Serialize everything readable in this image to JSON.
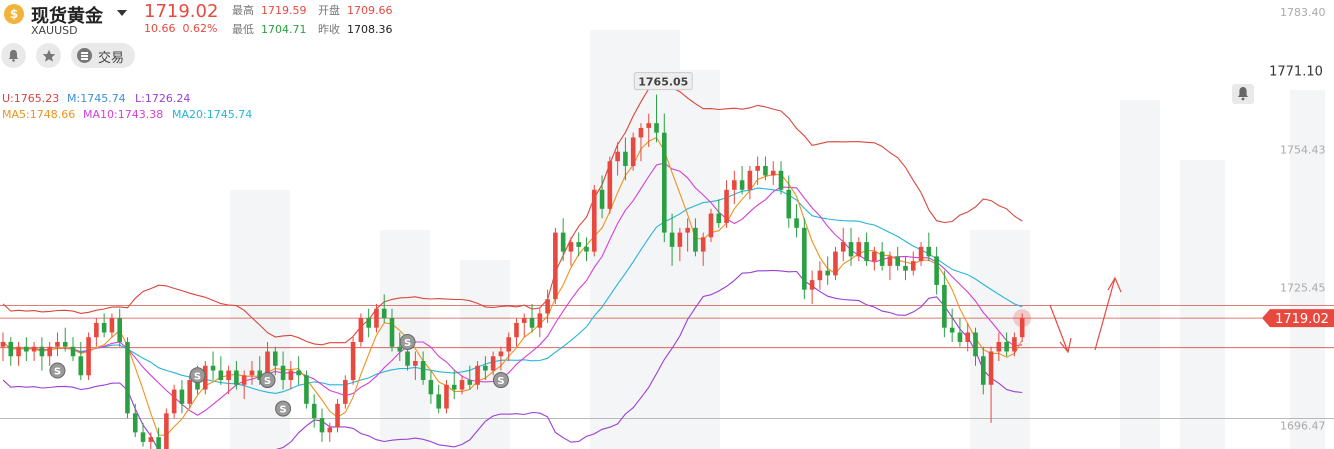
{
  "header": {
    "coin_glyph": "$",
    "name": "现货黄金",
    "symbol": "XAUUSD",
    "price": "1719.02",
    "change": "10.66",
    "change_pct": "0.62%",
    "high_label": "最高",
    "high": "1719.59",
    "open_label": "开盘",
    "open": "1709.66",
    "low_label": "最低",
    "low": "1704.71",
    "prev_label": "昨收",
    "prev_close": "1708.36",
    "trade_label": "交易"
  },
  "indicators": {
    "boll_upper": "U:1765.23",
    "boll_mid": "M:1745.74",
    "boll_lower": "L:1726.24",
    "ma5": "MA5:1748.66",
    "ma10": "MA10:1743.38",
    "ma20": "MA20:1745.74"
  },
  "colors": {
    "up": "#e8493f",
    "down": "#2aa043",
    "upper": "#d9473b",
    "mid": "#26b5d9",
    "lower": "#9b3fd6",
    "ma5": "#f0921f",
    "ma10": "#d53fd8"
  },
  "chart_data": {
    "type": "candlestick",
    "ylim": [
      1691.5,
      1785.9
    ],
    "y_ticks": [
      "1783.40",
      "1754.43",
      "1725.45",
      "1696.47"
    ],
    "current_price_tag": "1719.02",
    "alert_price_tag": "1771.10",
    "peak_label": "1765.05",
    "horizontal_lines": [
      1721.7,
      1719.02,
      1712.8,
      1697.9
    ],
    "candles": [
      [
        1713,
        1716,
        1710,
        1714
      ],
      [
        1714,
        1715,
        1709,
        1711
      ],
      [
        1711,
        1714,
        1709,
        1713
      ],
      [
        1713,
        1715,
        1710,
        1712
      ],
      [
        1712,
        1714,
        1710,
        1713
      ],
      [
        1713,
        1715,
        1708,
        1711
      ],
      [
        1711,
        1714,
        1709,
        1713
      ],
      [
        1713,
        1716,
        1711,
        1714
      ],
      [
        1714,
        1717,
        1712,
        1713
      ],
      [
        1713,
        1715,
        1710,
        1711
      ],
      [
        1711,
        1714,
        1706,
        1707
      ],
      [
        1707,
        1716,
        1706,
        1715
      ],
      [
        1715,
        1719,
        1713,
        1718
      ],
      [
        1718,
        1720,
        1715,
        1716
      ],
      [
        1716,
        1720,
        1715,
        1719
      ],
      [
        1719,
        1721,
        1713,
        1714
      ],
      [
        1714,
        1715,
        1698,
        1699
      ],
      [
        1699,
        1701,
        1694,
        1695
      ],
      [
        1695,
        1697,
        1692,
        1693
      ],
      [
        1693,
        1695,
        1690,
        1694
      ],
      [
        1694,
        1696,
        1690,
        1691
      ],
      [
        1691,
        1700,
        1690,
        1699
      ],
      [
        1699,
        1705,
        1698,
        1704
      ],
      [
        1704,
        1706,
        1699,
        1701
      ],
      [
        1701,
        1707,
        1700,
        1706
      ],
      [
        1706,
        1709,
        1703,
        1704
      ],
      [
        1704,
        1710,
        1703,
        1709
      ],
      [
        1709,
        1712,
        1706,
        1708
      ],
      [
        1708,
        1711,
        1705,
        1706
      ],
      [
        1706,
        1709,
        1703,
        1708
      ],
      [
        1708,
        1710,
        1704,
        1705
      ],
      [
        1705,
        1708,
        1702,
        1707
      ],
      [
        1707,
        1710,
        1705,
        1708
      ],
      [
        1708,
        1711,
        1705,
        1706
      ],
      [
        1706,
        1714,
        1705,
        1712
      ],
      [
        1712,
        1713,
        1707,
        1709
      ],
      [
        1709,
        1712,
        1704,
        1706
      ],
      [
        1706,
        1710,
        1704,
        1708
      ],
      [
        1708,
        1711,
        1705,
        1707
      ],
      [
        1707,
        1708,
        1700,
        1701
      ],
      [
        1701,
        1703,
        1696,
        1698
      ],
      [
        1698,
        1700,
        1693,
        1695
      ],
      [
        1695,
        1697,
        1693,
        1696
      ],
      [
        1696,
        1702,
        1695,
        1701
      ],
      [
        1701,
        1707,
        1700,
        1706
      ],
      [
        1706,
        1715,
        1705,
        1714
      ],
      [
        1714,
        1720,
        1713,
        1719
      ],
      [
        1719,
        1721,
        1715,
        1717
      ],
      [
        1717,
        1722,
        1716,
        1721
      ],
      [
        1721,
        1724,
        1718,
        1719
      ],
      [
        1719,
        1721,
        1712,
        1713
      ],
      [
        1713,
        1716,
        1710,
        1712
      ],
      [
        1712,
        1714,
        1708,
        1709
      ],
      [
        1709,
        1712,
        1706,
        1710
      ],
      [
        1710,
        1712,
        1705,
        1706
      ],
      [
        1706,
        1708,
        1701,
        1703
      ],
      [
        1703,
        1705,
        1699,
        1700
      ],
      [
        1700,
        1706,
        1699,
        1705
      ],
      [
        1705,
        1708,
        1702,
        1704
      ],
      [
        1704,
        1707,
        1703,
        1706
      ],
      [
        1706,
        1709,
        1704,
        1705
      ],
      [
        1705,
        1710,
        1704,
        1709
      ],
      [
        1709,
        1711,
        1706,
        1708
      ],
      [
        1708,
        1712,
        1707,
        1711
      ],
      [
        1711,
        1713,
        1708,
        1712
      ],
      [
        1712,
        1716,
        1710,
        1715
      ],
      [
        1715,
        1719,
        1713,
        1718
      ],
      [
        1718,
        1720,
        1715,
        1719
      ],
      [
        1719,
        1722,
        1716,
        1717
      ],
      [
        1717,
        1721,
        1715,
        1720
      ],
      [
        1720,
        1725,
        1718,
        1723
      ],
      [
        1723,
        1738,
        1722,
        1737
      ],
      [
        1737,
        1740,
        1731,
        1733
      ],
      [
        1733,
        1736,
        1730,
        1735
      ],
      [
        1735,
        1737,
        1732,
        1734
      ],
      [
        1734,
        1736,
        1731,
        1733
      ],
      [
        1733,
        1747,
        1732,
        1746
      ],
      [
        1746,
        1749,
        1740,
        1742
      ],
      [
        1742,
        1753,
        1741,
        1752
      ],
      [
        1752,
        1756,
        1749,
        1754
      ],
      [
        1754,
        1757,
        1748,
        1751
      ],
      [
        1751,
        1758,
        1750,
        1757
      ],
      [
        1757,
        1760,
        1752,
        1759
      ],
      [
        1759,
        1762,
        1755,
        1760
      ],
      [
        1760,
        1766,
        1756,
        1758
      ],
      [
        1758,
        1762,
        1735,
        1737
      ],
      [
        1737,
        1741,
        1730,
        1734
      ],
      [
        1734,
        1738,
        1731,
        1737
      ],
      [
        1737,
        1740,
        1733,
        1738
      ],
      [
        1738,
        1740,
        1732,
        1733
      ],
      [
        1733,
        1737,
        1730,
        1736
      ],
      [
        1736,
        1742,
        1735,
        1741
      ],
      [
        1741,
        1744,
        1738,
        1739
      ],
      [
        1739,
        1748,
        1738,
        1746
      ],
      [
        1746,
        1750,
        1743,
        1748
      ],
      [
        1748,
        1751,
        1745,
        1746
      ],
      [
        1746,
        1751,
        1744,
        1750
      ],
      [
        1750,
        1753,
        1747,
        1751
      ],
      [
        1751,
        1753,
        1748,
        1749
      ],
      [
        1749,
        1752,
        1747,
        1750
      ],
      [
        1750,
        1752,
        1745,
        1746
      ],
      [
        1746,
        1749,
        1738,
        1740
      ],
      [
        1740,
        1743,
        1736,
        1738
      ],
      [
        1738,
        1740,
        1723,
        1725
      ],
      [
        1725,
        1729,
        1722,
        1727
      ],
      [
        1727,
        1731,
        1725,
        1729
      ],
      [
        1729,
        1732,
        1726,
        1728
      ],
      [
        1728,
        1734,
        1727,
        1733
      ],
      [
        1733,
        1738,
        1731,
        1735
      ],
      [
        1735,
        1738,
        1730,
        1732
      ],
      [
        1732,
        1736,
        1731,
        1735
      ],
      [
        1735,
        1737,
        1730,
        1731
      ],
      [
        1731,
        1734,
        1729,
        1733
      ],
      [
        1733,
        1735,
        1729,
        1730
      ],
      [
        1730,
        1733,
        1727,
        1732
      ],
      [
        1732,
        1734,
        1729,
        1730
      ],
      [
        1730,
        1732,
        1727,
        1729
      ],
      [
        1729,
        1733,
        1728,
        1731
      ],
      [
        1731,
        1735,
        1730,
        1734
      ],
      [
        1734,
        1737,
        1731,
        1732
      ],
      [
        1732,
        1734,
        1724,
        1726
      ],
      [
        1726,
        1729,
        1715,
        1717
      ],
      [
        1717,
        1721,
        1714,
        1716
      ],
      [
        1716,
        1719,
        1713,
        1714
      ],
      [
        1714,
        1718,
        1712,
        1716
      ],
      [
        1716,
        1717,
        1709,
        1711
      ],
      [
        1711,
        1713,
        1703,
        1705
      ],
      [
        1705,
        1713,
        1697,
        1712
      ],
      [
        1712,
        1716,
        1710,
        1714
      ],
      [
        1714,
        1716,
        1711,
        1712
      ],
      [
        1712,
        1716,
        1711,
        1715
      ],
      [
        1715,
        1720,
        1714,
        1719
      ]
    ]
  }
}
